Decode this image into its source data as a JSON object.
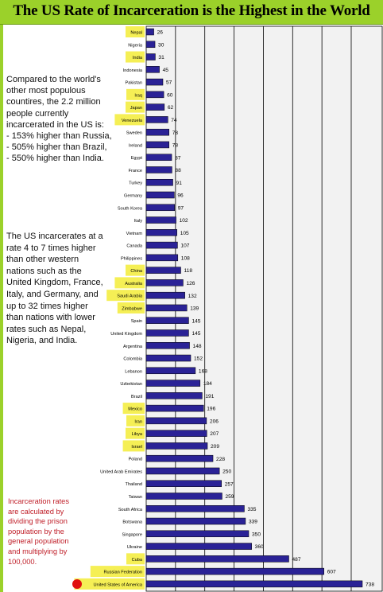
{
  "title": "The US Rate of Incarceration is the Highest in the World",
  "colors": {
    "title_bg": "#9bd12a",
    "bar": "#2a2296",
    "highlight": "#f5ef55",
    "usa_marker": "#e01010",
    "note_red": "#c0202a"
  },
  "notes": {
    "note1": [
      "Compared to the world's",
      "other most populous",
      "countires, the 2.2 million",
      "people currently",
      "incarcerated in the US is:",
      "- 153% higher than Russia,",
      "- 505% higher than Brazil,",
      "- 550% higher than India."
    ],
    "note2": [
      "The US incarcerates at a",
      "rate 4 to 7 times higher",
      "than other western",
      "nations such as the",
      "United Kingdom, France,",
      "Italy, and Germany, and",
      "up to 32 times higher",
      "than nations with lower",
      "rates such as Nepal,",
      "Nigeria, and India."
    ],
    "note3": [
      "Incarceration rates",
      "are calculated by",
      "dividing the prison",
      "population by the",
      "general population",
      "and multiplying by",
      "100,000."
    ]
  },
  "chart_data": {
    "type": "bar",
    "orientation": "horizontal",
    "title": "The US Rate of Incarceration is the Highest in the World",
    "xlim": [
      0,
      760
    ],
    "grid": true,
    "categories": [
      "Nepal",
      "Nigeria",
      "India",
      "Indonesia",
      "Pakistan",
      "Iraq",
      "Japan",
      "Venezuela",
      "Sweden",
      "Ireland",
      "Egypt",
      "France",
      "Turkey",
      "Germany",
      "South Korea",
      "Italy",
      "Vietnam",
      "Canada",
      "Philippines",
      "China",
      "Australia",
      "Saudi Arabia",
      "Zimbabwe",
      "Spain",
      "United Kingdom",
      "Argentina",
      "Colombia",
      "Lebanon",
      "Uzbekistan",
      "Brazil",
      "Mexico",
      "Iran",
      "Libya",
      "Israel",
      "Poland",
      "United Arab Emirates",
      "Thailand",
      "Taiwan",
      "South Africa",
      "Botswana",
      "Singapore",
      "Ukraine",
      "Cuba",
      "Russian Federation",
      "United States of America"
    ],
    "values": [
      26,
      30,
      31,
      45,
      57,
      60,
      62,
      74,
      78,
      78,
      87,
      88,
      91,
      96,
      97,
      102,
      105,
      107,
      108,
      118,
      126,
      132,
      139,
      145,
      145,
      148,
      152,
      168,
      184,
      191,
      196,
      206,
      207,
      209,
      228,
      250,
      257,
      259,
      335,
      339,
      350,
      360,
      487,
      607,
      738
    ],
    "highlighted": [
      "Nepal",
      "India",
      "Iraq",
      "Japan",
      "Venezuela",
      "China",
      "Australia",
      "Saudi Arabia",
      "Zimbabwe",
      "Mexico",
      "Iran",
      "Libya",
      "Israel",
      "Cuba",
      "Russian Federation",
      "United States of America"
    ],
    "marked": "United States of America"
  }
}
